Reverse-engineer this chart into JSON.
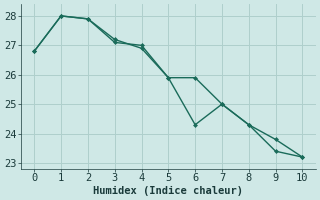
{
  "xlabel": "Humidex (Indice chaleur)",
  "ylabel": "",
  "background_color": "#cfe8e6",
  "grid_color": "#aecfcc",
  "line_color": "#1a6b5a",
  "x": [
    0,
    1,
    2,
    3,
    4,
    5,
    6,
    7,
    8,
    9,
    10
  ],
  "line1": [
    26.8,
    28.0,
    27.9,
    27.1,
    27.0,
    25.9,
    24.3,
    25.0,
    24.3,
    23.8,
    23.2
  ],
  "line2": [
    26.8,
    28.0,
    27.9,
    27.2,
    26.9,
    25.9,
    25.9,
    25.0,
    24.3,
    23.4,
    23.2
  ],
  "ylim": [
    22.8,
    28.4
  ],
  "xlim": [
    -0.5,
    10.5
  ],
  "yticks": [
    23,
    24,
    25,
    26,
    27,
    28
  ],
  "xticks": [
    0,
    1,
    2,
    3,
    4,
    5,
    6,
    7,
    8,
    9,
    10
  ],
  "marker": "D",
  "marker_size": 2.5,
  "line_width": 1.0,
  "font_size": 7.5
}
